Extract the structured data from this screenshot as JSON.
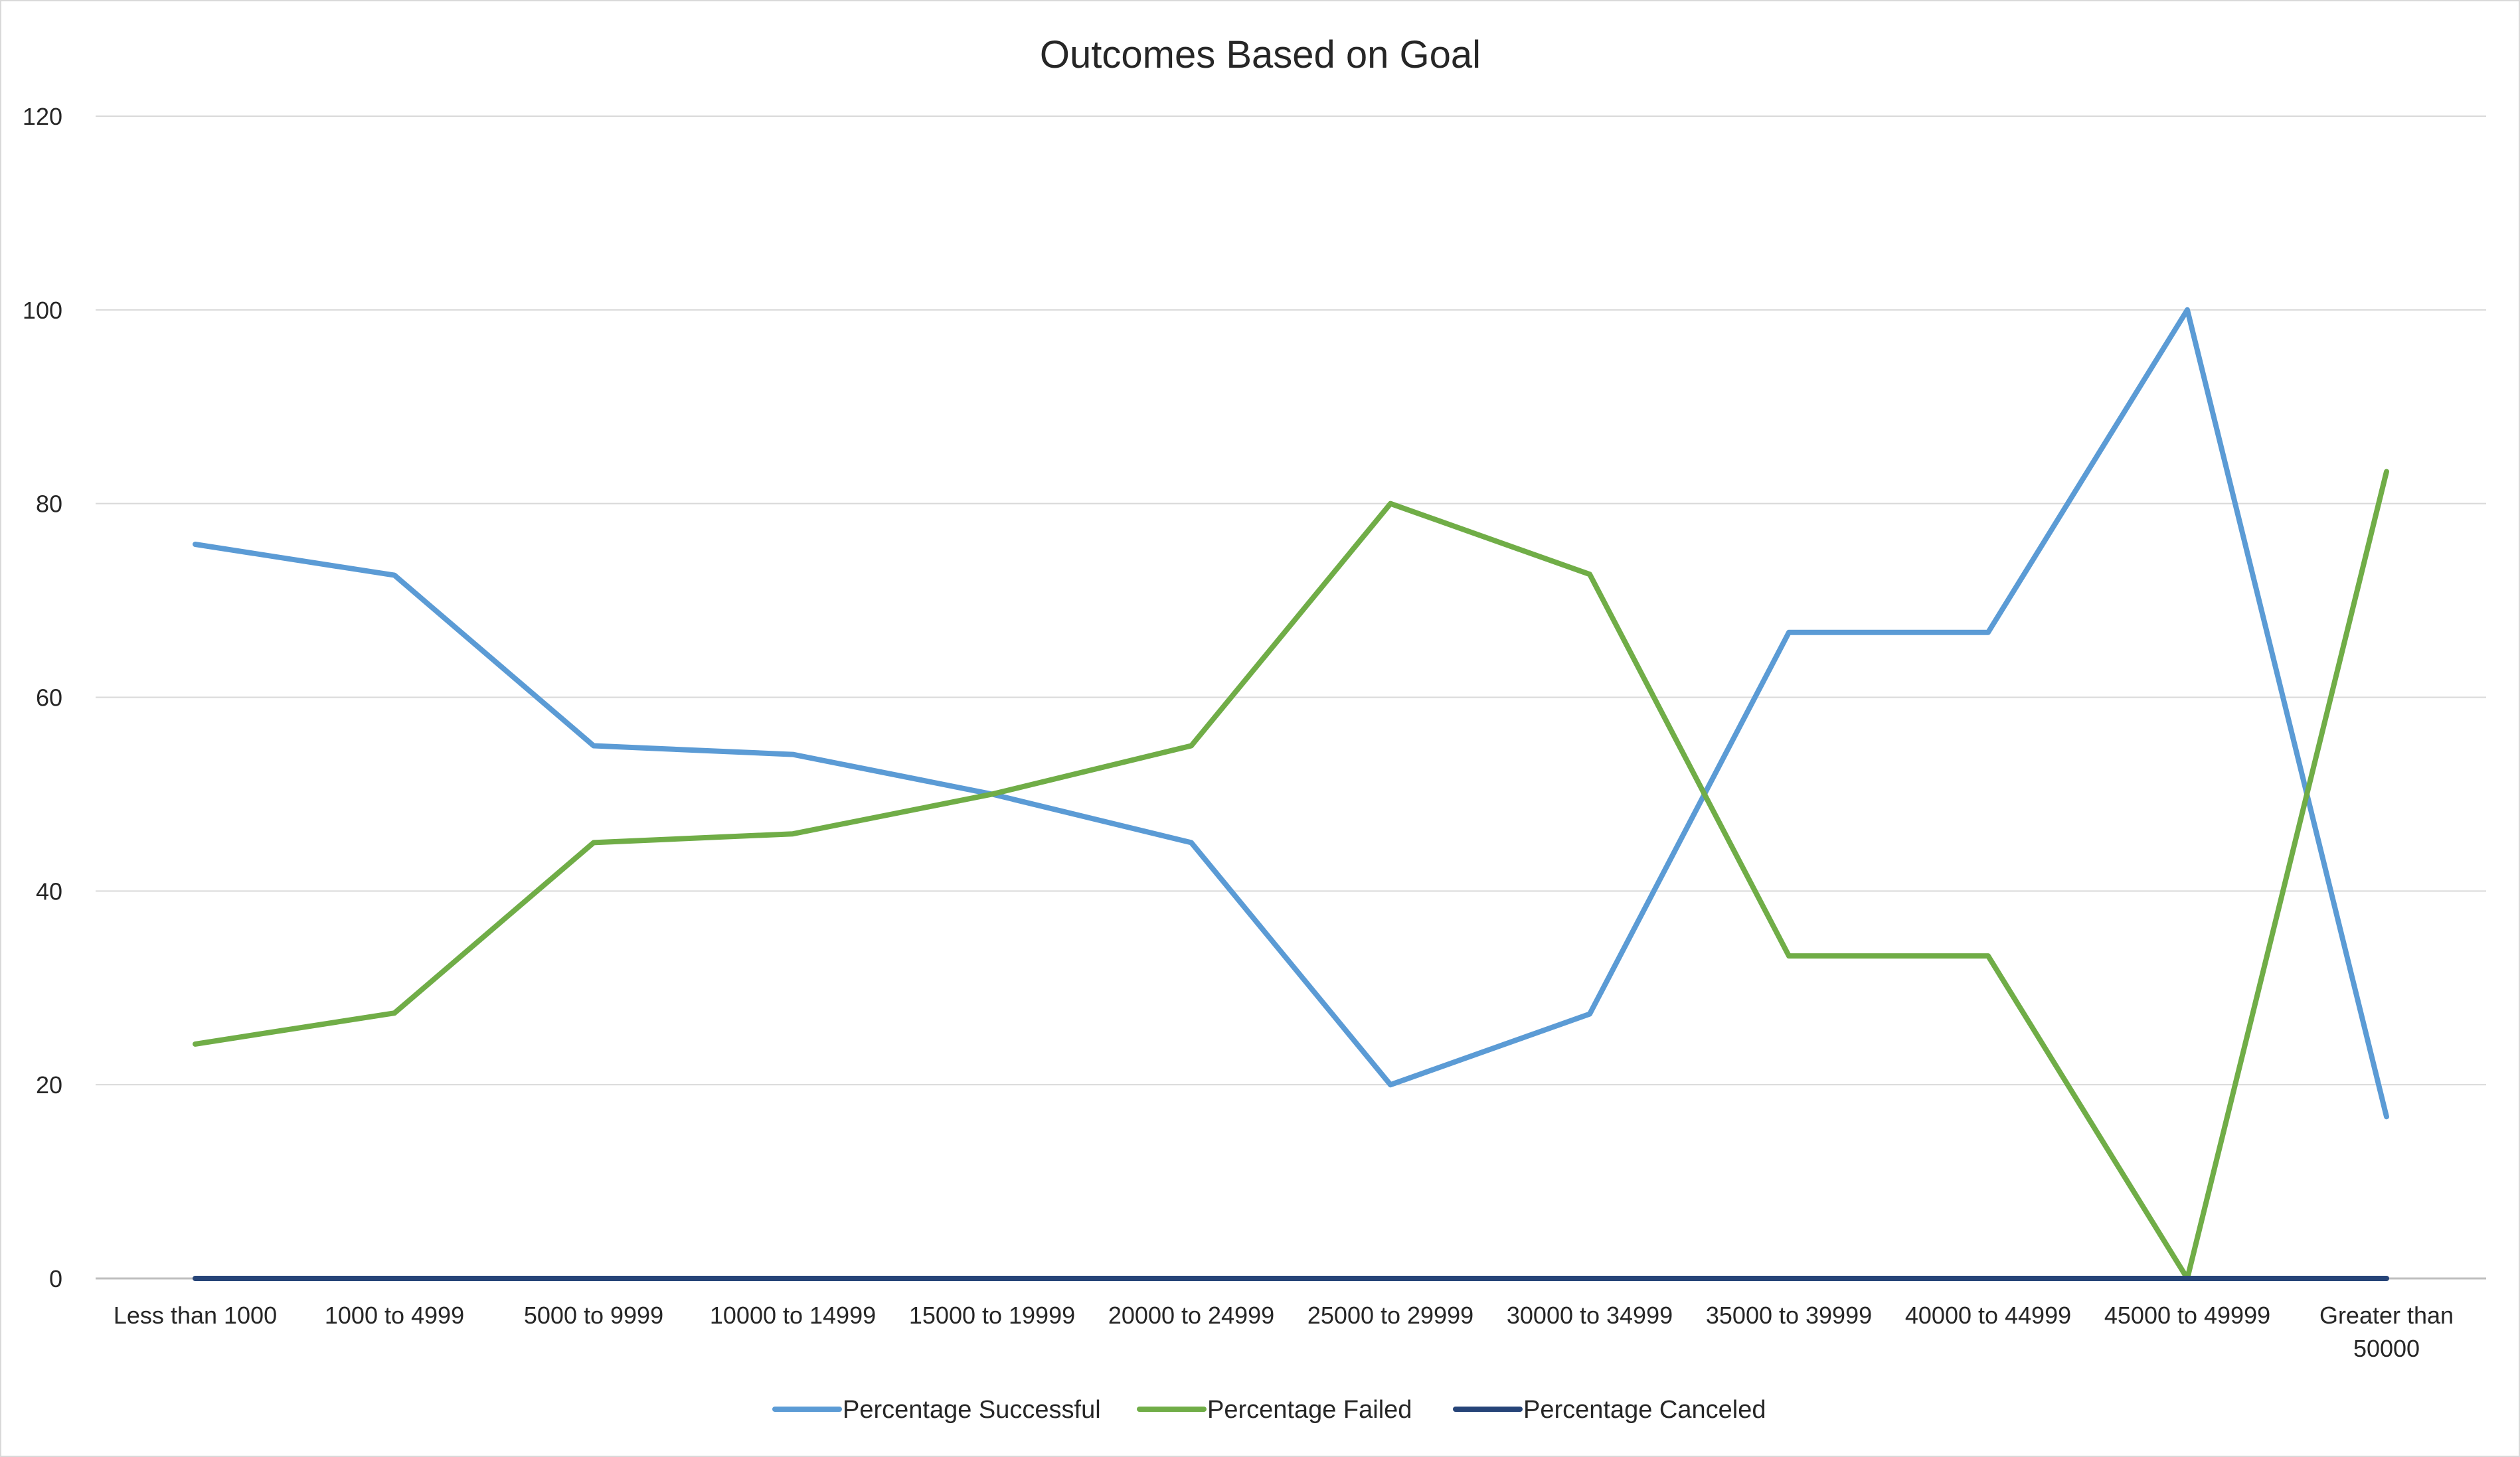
{
  "chart_data": {
    "type": "line",
    "title": "Outcomes Based on Goal",
    "xlabel": "",
    "ylabel": "",
    "ylim": [
      0,
      120
    ],
    "yticks": [
      0,
      20,
      40,
      60,
      80,
      100,
      120
    ],
    "grid": true,
    "legend_position": "bottom",
    "categories": [
      "Less than 1000",
      "1000 to 4999",
      "5000 to 9999",
      "10000 to 14999",
      "15000 to 19999",
      "20000 to 24999",
      "25000 to 29999",
      "30000 to 34999",
      "35000 to 39999",
      "40000 to 44999",
      "45000 to 49999",
      "Greater than 50000"
    ],
    "category_lines": [
      [
        "Less than 1000"
      ],
      [
        "1000 to 4999"
      ],
      [
        "5000 to 9999"
      ],
      [
        "10000 to 14999"
      ],
      [
        "15000 to 19999"
      ],
      [
        "20000 to 24999"
      ],
      [
        "25000 to 29999"
      ],
      [
        "30000 to 34999"
      ],
      [
        "35000 to 39999"
      ],
      [
        "40000 to 44999"
      ],
      [
        "45000 to 49999"
      ],
      [
        "Greater than",
        "50000"
      ]
    ],
    "series": [
      {
        "name": "Percentage Successful",
        "color": "#5b9bd5",
        "values": [
          75.8,
          72.6,
          55.0,
          54.1,
          50.0,
          45.0,
          20.0,
          27.3,
          66.7,
          66.7,
          100,
          16.7
        ]
      },
      {
        "name": "Percentage Failed",
        "color": "#70ad47",
        "values": [
          24.2,
          27.4,
          45.0,
          45.9,
          50.0,
          55.0,
          80.0,
          72.7,
          33.3,
          33.3,
          0,
          83.3
        ]
      },
      {
        "name": "Percentage Canceled",
        "color": "#264478",
        "values": [
          0,
          0,
          0,
          0,
          0,
          0,
          0,
          0,
          0,
          0,
          0,
          0
        ]
      }
    ]
  }
}
